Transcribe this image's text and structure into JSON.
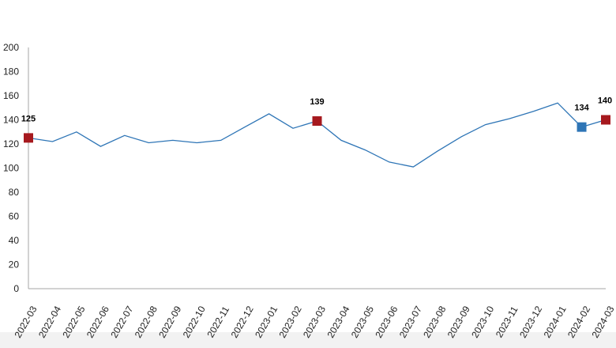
{
  "chart_data": {
    "type": "line",
    "title": "",
    "xlabel": "",
    "ylabel": "",
    "ylim": [
      0,
      200
    ],
    "yticks": [
      0,
      20,
      40,
      60,
      80,
      100,
      120,
      140,
      160,
      180,
      200
    ],
    "grid": false,
    "legend": "none",
    "categories": [
      "2022-03",
      "2022-04",
      "2022-05",
      "2022-06",
      "2022-07",
      "2022-08",
      "2022-09",
      "2022-10",
      "2022-11",
      "2022-12",
      "2023-01",
      "2023-02",
      "2023-03",
      "2023-04",
      "2023-05",
      "2023-06",
      "2023-07",
      "2023-08",
      "2023-09",
      "2023-10",
      "2023-11",
      "2023-12",
      "2024-01",
      "2024-02",
      "2024-03"
    ],
    "series": [
      {
        "values": [
          125,
          122,
          130,
          118,
          127,
          121,
          123,
          121,
          123,
          134,
          145,
          133,
          139,
          123,
          115,
          105,
          101,
          114,
          126,
          136,
          141,
          147,
          154,
          134,
          140
        ],
        "color": "#2e75b6"
      }
    ],
    "highlighted_points": [
      {
        "category": "2022-03",
        "value": 125,
        "label": "125",
        "color": "#a6191e"
      },
      {
        "category": "2023-03",
        "value": 139,
        "label": "139",
        "color": "#a6191e"
      },
      {
        "category": "2024-02",
        "value": 134,
        "label": "134",
        "color": "#2e75b6"
      },
      {
        "category": "2024-03",
        "value": 140,
        "label": "140",
        "color": "#a6191e"
      }
    ],
    "axis_color": "#a6a6a6",
    "bottom_band_color": "#f2f2f2"
  }
}
